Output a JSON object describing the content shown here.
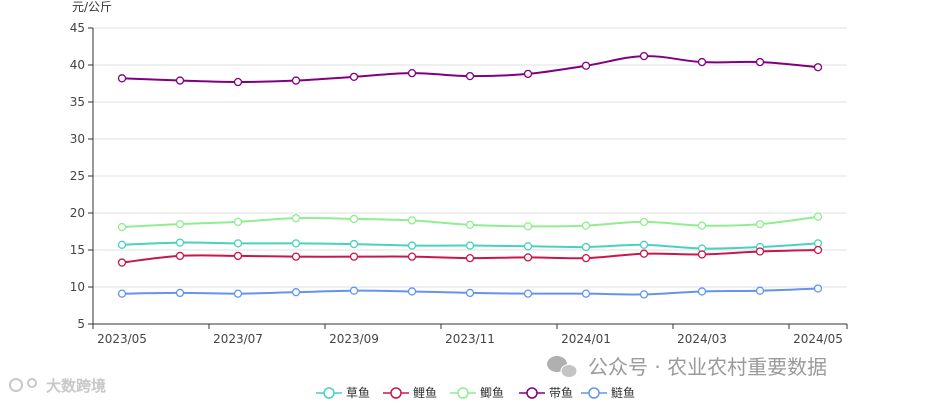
{
  "chart_data": {
    "type": "line",
    "ylabel": "元/公斤",
    "ylim": [
      5,
      45
    ],
    "yticks": [
      5,
      10,
      15,
      20,
      25,
      30,
      35,
      40,
      45
    ],
    "x_tick_labels": [
      "2023/05",
      "2023/07",
      "2023/09",
      "2023/11",
      "2024/01",
      "2024/03",
      "2024/05"
    ],
    "x": [
      "2023/05",
      "2023/06",
      "2023/07",
      "2023/08",
      "2023/09",
      "2023/10",
      "2023/11",
      "2023/12",
      "2024/01",
      "2024/02",
      "2024/03",
      "2024/04",
      "2024/05"
    ],
    "grid": "horizontal",
    "legend_position": "bottom",
    "series": [
      {
        "name": "草鱼",
        "color": "#48d1c0",
        "values": [
          15.7,
          16.0,
          15.9,
          15.9,
          15.8,
          15.6,
          15.6,
          15.5,
          15.4,
          15.7,
          15.2,
          15.4,
          15.9
        ]
      },
      {
        "name": "鲤鱼",
        "color": "#c8174a",
        "values": [
          13.3,
          14.2,
          14.2,
          14.1,
          14.1,
          14.1,
          13.9,
          14.0,
          13.9,
          14.5,
          14.4,
          14.8,
          15.0
        ]
      },
      {
        "name": "鲫鱼",
        "color": "#90ee90",
        "values": [
          18.1,
          18.5,
          18.8,
          19.3,
          19.2,
          19.0,
          18.4,
          18.2,
          18.3,
          18.8,
          18.3,
          18.5,
          19.5
        ]
      },
      {
        "name": "带鱼",
        "color": "#800080",
        "values": [
          38.2,
          37.9,
          37.7,
          37.9,
          38.4,
          38.9,
          38.5,
          38.8,
          39.9,
          41.2,
          40.4,
          40.4,
          39.7
        ]
      },
      {
        "name": "鲢鱼",
        "color": "#6495ed",
        "values": [
          9.1,
          9.2,
          9.1,
          9.3,
          9.5,
          9.4,
          9.2,
          9.1,
          9.1,
          9.0,
          9.4,
          9.5,
          9.8
        ]
      }
    ]
  },
  "watermark": {
    "main_text": "公众号 · 农业农村重要数据",
    "left_text": "大数跨境",
    "icon": "wechat-icon",
    "left_icon": "brand-logo-icon"
  }
}
